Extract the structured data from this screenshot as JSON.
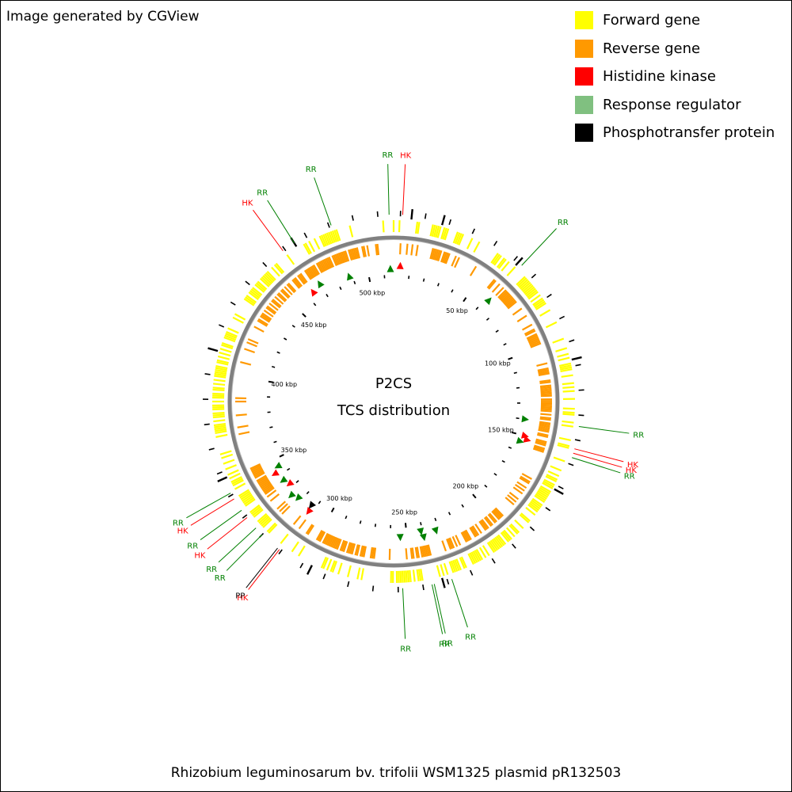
{
  "credit": "Image generated by CGView",
  "caption": "Rhizobium leguminosarum bv. trifolii WSM1325 plasmid pR132503",
  "center": {
    "line1": "P2CS",
    "line2": "TCS distribution"
  },
  "legend": [
    {
      "label": "Forward gene",
      "color": "#ffff00"
    },
    {
      "label": "Reverse gene",
      "color": "#ff9900"
    },
    {
      "label": "Histidine kinase",
      "color": "#ff0000"
    },
    {
      "label": "Response regulator",
      "color": "#80c080"
    },
    {
      "label": "Phosphotransfer protein",
      "color": "#000000"
    }
  ],
  "colors": {
    "forward": "#ffff00",
    "reverse": "#ff9900",
    "hk": "#ff0000",
    "rr_label": "#008000",
    "rr_marker": "#008000",
    "pp": "#000000",
    "backbone": "#808080"
  },
  "chart_data": {
    "type": "circular-map",
    "genome_length_kbp": 516,
    "ruler_labels": [
      {
        "kbp": 50,
        "label": "50 kbp"
      },
      {
        "kbp": 100,
        "label": "100 kbp"
      },
      {
        "kbp": 150,
        "label": "150 kbp"
      },
      {
        "kbp": 200,
        "label": "200 kbp"
      },
      {
        "kbp": 250,
        "label": "250 kbp"
      },
      {
        "kbp": 300,
        "label": "300 kbp"
      },
      {
        "kbp": 350,
        "label": "350 kbp"
      },
      {
        "kbp": 400,
        "label": "400 kbp"
      },
      {
        "kbp": 450,
        "label": "450 kbp"
      },
      {
        "kbp": 500,
        "label": "500 kbp"
      }
    ],
    "tcs_features": [
      {
        "type": "RR",
        "kbp": 514
      },
      {
        "type": "HK",
        "kbp": 4
      },
      {
        "type": "RR",
        "kbp": 62
      },
      {
        "type": "RR",
        "kbp": 140
      },
      {
        "type": "HK",
        "kbp": 150
      },
      {
        "type": "HK",
        "kbp": 152
      },
      {
        "type": "RR",
        "kbp": 154
      },
      {
        "type": "RR",
        "kbp": 232
      },
      {
        "type": "RR",
        "kbp": 240
      },
      {
        "type": "RR",
        "kbp": 241
      },
      {
        "type": "RR",
        "kbp": 254
      },
      {
        "type": "HK",
        "kbp": 312
      },
      {
        "type": "PP",
        "kbp": 313
      },
      {
        "type": "RR",
        "kbp": 322
      },
      {
        "type": "RR",
        "kbp": 326
      },
      {
        "type": "HK",
        "kbp": 332
      },
      {
        "type": "RR",
        "kbp": 336
      },
      {
        "type": "HK",
        "kbp": 342
      },
      {
        "type": "RR",
        "kbp": 345
      },
      {
        "type": "HK",
        "kbp": 464
      },
      {
        "type": "RR",
        "kbp": 470
      },
      {
        "type": "RR",
        "kbp": 488
      }
    ]
  }
}
